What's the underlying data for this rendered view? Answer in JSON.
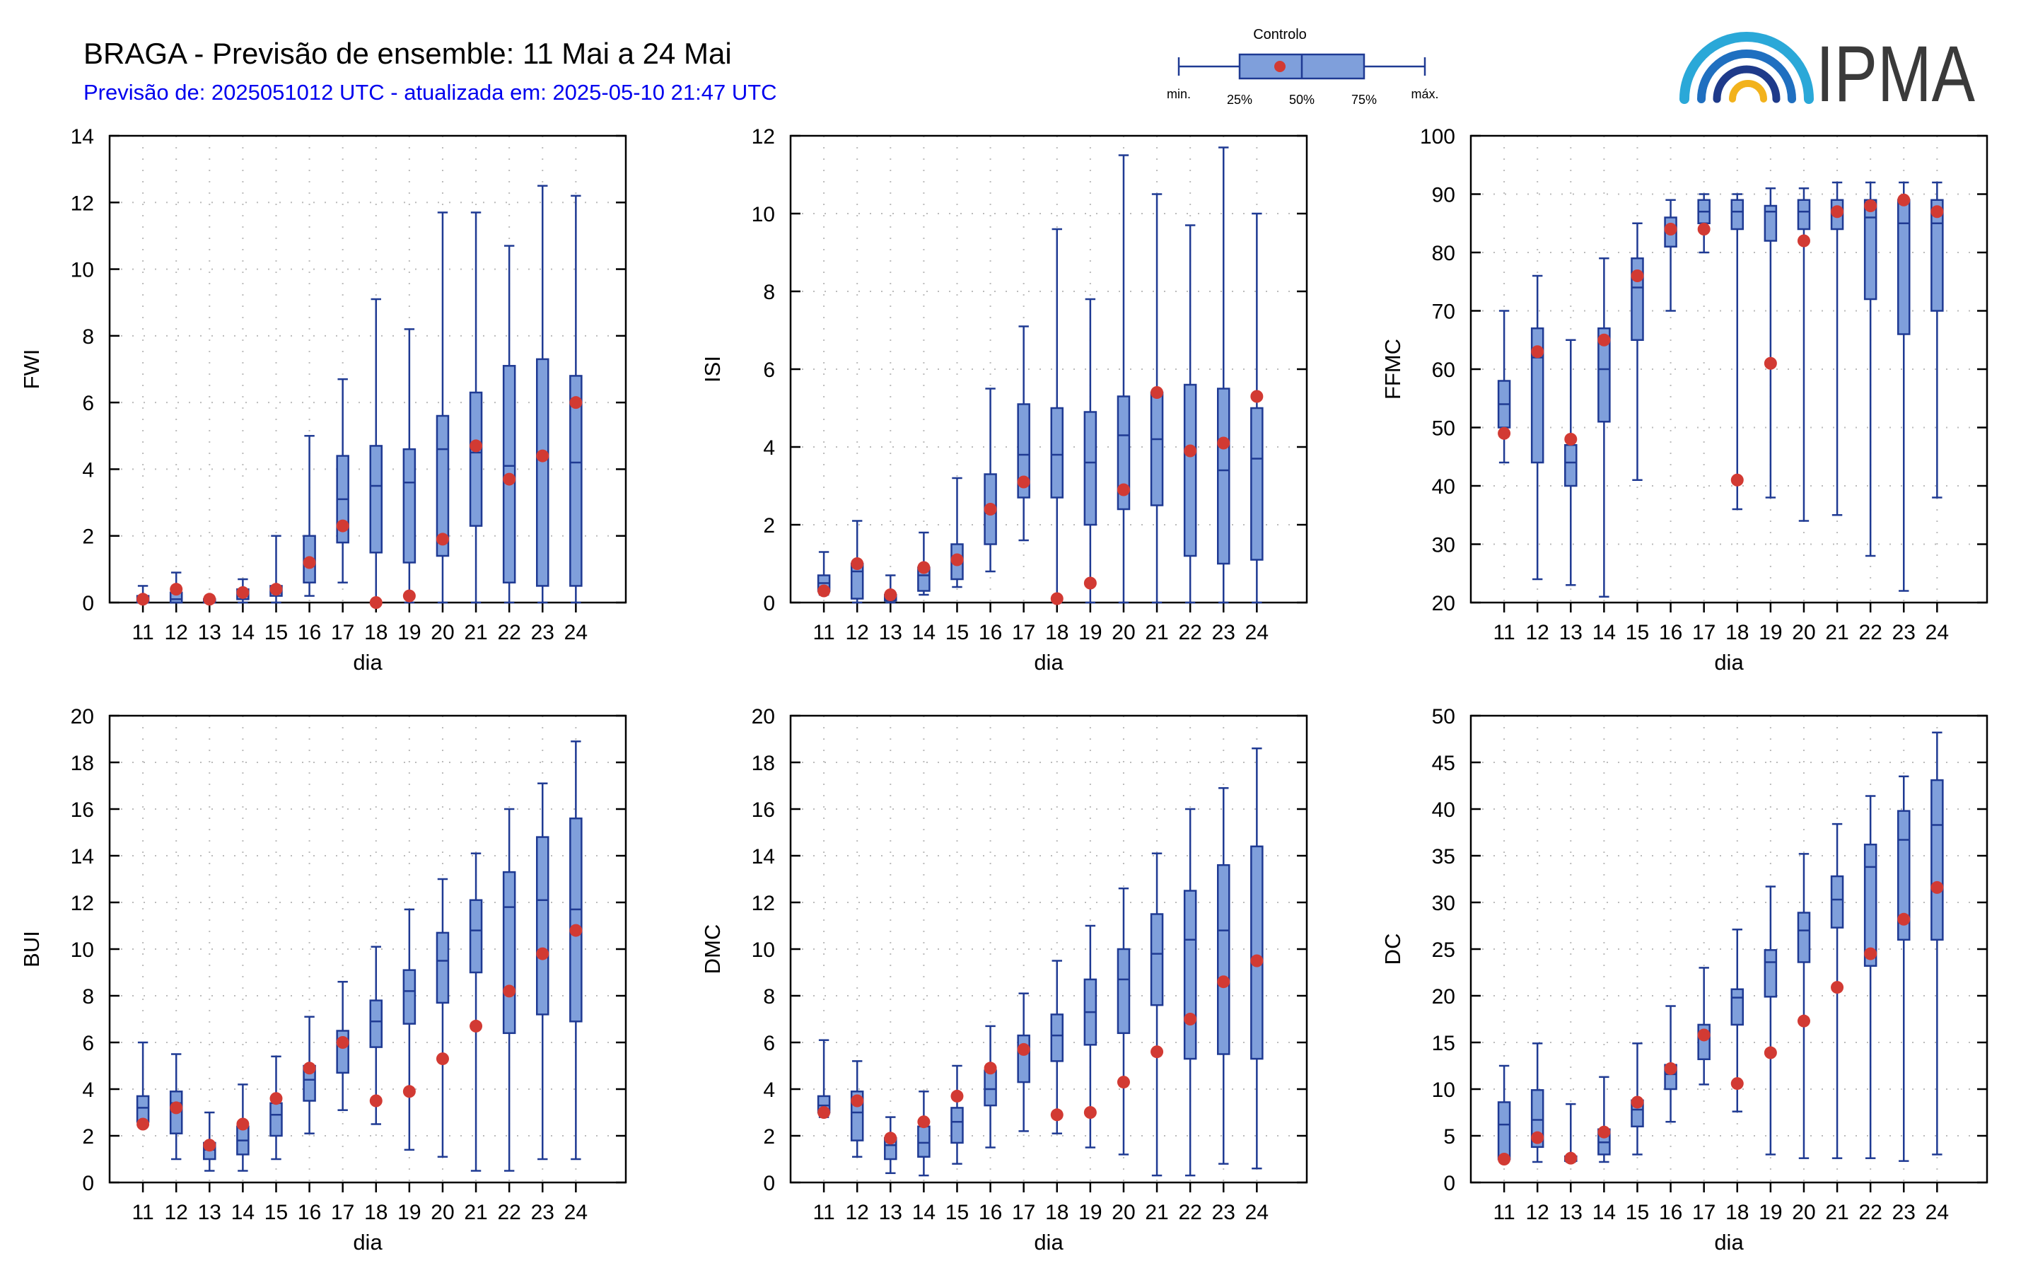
{
  "header": {
    "title": "BRAGA - Previsão de ensemble: 11 Mai a 24 Mai",
    "subtitle": "Previsão de: 2025051012 UTC - atualizada em: 2025-05-10 21:47 UTC",
    "logo_text": "IPMA"
  },
  "legend": {
    "control_label": "Controlo",
    "min_label": "min.",
    "q25_label": "25%",
    "median_label": "50%",
    "q75_label": "75%",
    "max_label": "máx."
  },
  "colors": {
    "box_fill": "#7f9fdb",
    "box_stroke": "#1f3a93",
    "control_dot": "#d23a33",
    "grid": "#bbbbbb"
  },
  "chart_data": [
    {
      "type": "boxplot",
      "ylabel": "FWI",
      "xlabel": "dia",
      "categories": [
        "11",
        "12",
        "13",
        "14",
        "15",
        "16",
        "17",
        "18",
        "19",
        "20",
        "21",
        "22",
        "23",
        "24"
      ],
      "ylim": [
        0,
        14
      ],
      "yticks": [
        0,
        2,
        4,
        6,
        8,
        10,
        12,
        14
      ],
      "min": [
        0,
        0,
        0,
        0,
        0,
        0.2,
        0.6,
        0,
        0,
        0,
        0,
        0,
        0,
        0
      ],
      "q1": [
        0,
        0,
        0,
        0.1,
        0.2,
        0.6,
        1.8,
        1.5,
        1.2,
        1.4,
        2.3,
        0.6,
        0.5,
        0.5
      ],
      "median": [
        0.1,
        0.1,
        0,
        0.2,
        0.3,
        1.1,
        3.1,
        3.5,
        3.6,
        4.6,
        4.5,
        4.1,
        4.3,
        4.2
      ],
      "q3": [
        0.2,
        0.3,
        0.1,
        0.4,
        0.5,
        2.0,
        4.4,
        4.7,
        4.6,
        5.6,
        6.3,
        7.1,
        7.3,
        6.8
      ],
      "max": [
        0.5,
        0.9,
        0.1,
        0.7,
        2.0,
        5.0,
        6.7,
        9.1,
        8.2,
        11.7,
        11.7,
        10.7,
        12.5,
        12.2
      ],
      "control": [
        0.1,
        0.4,
        0.1,
        0.3,
        0.4,
        1.2,
        2.3,
        0,
        0.2,
        1.9,
        4.7,
        3.7,
        4.4,
        6.0
      ]
    },
    {
      "type": "boxplot",
      "ylabel": "ISI",
      "xlabel": "dia",
      "categories": [
        "11",
        "12",
        "13",
        "14",
        "15",
        "16",
        "17",
        "18",
        "19",
        "20",
        "21",
        "22",
        "23",
        "24"
      ],
      "ylim": [
        0,
        12
      ],
      "yticks": [
        0,
        2,
        4,
        6,
        8,
        10,
        12
      ],
      "min": [
        0.2,
        0,
        0,
        0.2,
        0.4,
        0.8,
        1.6,
        0,
        0,
        0,
        0,
        0,
        0,
        0
      ],
      "q1": [
        0.3,
        0.1,
        0.05,
        0.3,
        0.6,
        1.5,
        2.7,
        2.7,
        2.0,
        2.4,
        2.5,
        1.2,
        1.0,
        1.1
      ],
      "median": [
        0.5,
        0.8,
        0.1,
        0.7,
        1.1,
        2.3,
        3.8,
        3.8,
        3.6,
        4.3,
        4.2,
        3.9,
        3.4,
        3.7
      ],
      "q3": [
        0.7,
        1.0,
        0.2,
        0.9,
        1.5,
        3.3,
        5.1,
        5.0,
        4.9,
        5.3,
        5.4,
        5.6,
        5.5,
        5.0
      ],
      "max": [
        1.3,
        2.1,
        0.7,
        1.8,
        3.2,
        5.5,
        7.1,
        9.6,
        7.8,
        11.5,
        10.5,
        9.7,
        11.7,
        10.0
      ],
      "control": [
        0.3,
        1.0,
        0.2,
        0.9,
        1.1,
        2.4,
        3.1,
        0.1,
        0.5,
        2.9,
        5.4,
        3.9,
        4.1,
        5.3
      ]
    },
    {
      "type": "boxplot",
      "ylabel": "FFMC",
      "xlabel": "dia",
      "categories": [
        "11",
        "12",
        "13",
        "14",
        "15",
        "16",
        "17",
        "18",
        "19",
        "20",
        "21",
        "22",
        "23",
        "24"
      ],
      "ylim": [
        20,
        100
      ],
      "yticks": [
        20,
        30,
        40,
        50,
        60,
        70,
        80,
        90,
        100
      ],
      "min": [
        44,
        24,
        23,
        21,
        41,
        70,
        80,
        36,
        38,
        34,
        35,
        28,
        22,
        38
      ],
      "q1": [
        50,
        44,
        40,
        51,
        65,
        81,
        85,
        84,
        82,
        84,
        84,
        72,
        66,
        70
      ],
      "median": [
        54,
        62,
        44,
        60,
        74,
        84,
        87,
        87,
        87,
        87,
        87,
        86,
        85,
        85
      ],
      "q3": [
        58,
        67,
        47,
        67,
        79,
        86,
        89,
        89,
        88,
        89,
        89,
        89,
        89,
        89
      ],
      "max": [
        70,
        76,
        65,
        79,
        85,
        89,
        90,
        90,
        91,
        91,
        92,
        92,
        92,
        92
      ],
      "control": [
        49,
        63,
        48,
        65,
        76,
        84,
        84,
        41,
        61,
        82,
        87,
        88,
        89,
        87
      ]
    },
    {
      "type": "boxplot",
      "ylabel": "BUI",
      "xlabel": "dia",
      "categories": [
        "11",
        "12",
        "13",
        "14",
        "15",
        "16",
        "17",
        "18",
        "19",
        "20",
        "21",
        "22",
        "23",
        "24"
      ],
      "ylim": [
        0,
        20
      ],
      "yticks": [
        0,
        2,
        4,
        6,
        8,
        10,
        12,
        14,
        16,
        18,
        20
      ],
      "min": [
        2.4,
        1.0,
        0.5,
        0.5,
        1.0,
        2.1,
        3.1,
        2.5,
        1.4,
        1.1,
        0.5,
        0.5,
        1.0,
        1.0
      ],
      "q1": [
        2.6,
        2.1,
        1.0,
        1.2,
        2.0,
        3.5,
        4.7,
        5.8,
        6.8,
        7.7,
        9.0,
        6.4,
        7.2,
        6.9
      ],
      "median": [
        3.2,
        3.4,
        1.4,
        1.8,
        2.9,
        4.4,
        6.1,
        6.9,
        8.2,
        9.5,
        10.8,
        11.8,
        12.1,
        11.7
      ],
      "q3": [
        3.7,
        3.9,
        1.7,
        2.4,
        3.4,
        5.0,
        6.5,
        7.8,
        9.1,
        10.7,
        12.1,
        13.3,
        14.8,
        15.6
      ],
      "max": [
        6.0,
        5.5,
        3.0,
        4.2,
        5.4,
        7.1,
        8.6,
        10.1,
        11.7,
        13.0,
        14.1,
        16.0,
        17.1,
        18.9
      ],
      "control": [
        2.5,
        3.2,
        1.6,
        2.5,
        3.6,
        4.9,
        6.0,
        3.5,
        3.9,
        5.3,
        6.7,
        8.2,
        9.8,
        10.8
      ]
    },
    {
      "type": "boxplot",
      "ylabel": "DMC",
      "xlabel": "dia",
      "categories": [
        "11",
        "12",
        "13",
        "14",
        "15",
        "16",
        "17",
        "18",
        "19",
        "20",
        "21",
        "22",
        "23",
        "24"
      ],
      "ylim": [
        0,
        20
      ],
      "yticks": [
        0,
        2,
        4,
        6,
        8,
        10,
        12,
        14,
        16,
        18,
        20
      ],
      "min": [
        2.8,
        1.1,
        0.4,
        0.3,
        0.8,
        1.5,
        2.2,
        2.1,
        1.5,
        1.2,
        0.3,
        0.3,
        0.8,
        0.6
      ],
      "q1": [
        3.0,
        1.8,
        1.0,
        1.1,
        1.7,
        3.3,
        4.3,
        5.2,
        5.9,
        6.4,
        7.6,
        5.3,
        5.5,
        5.3
      ],
      "median": [
        3.3,
        3.0,
        1.6,
        1.7,
        2.6,
        4.0,
        5.8,
        6.3,
        7.3,
        8.7,
        9.8,
        10.4,
        10.8,
        9.6
      ],
      "q3": [
        3.7,
        3.9,
        1.9,
        2.4,
        3.2,
        4.8,
        6.3,
        7.2,
        8.7,
        10.0,
        11.5,
        12.5,
        13.6,
        14.4
      ],
      "max": [
        6.1,
        5.2,
        2.8,
        3.9,
        5.0,
        6.7,
        8.1,
        9.5,
        11.0,
        12.6,
        14.1,
        16.0,
        16.9,
        18.6
      ],
      "control": [
        3.0,
        3.5,
        1.9,
        2.6,
        3.7,
        4.9,
        5.7,
        2.9,
        3.0,
        4.3,
        5.6,
        7.0,
        8.6,
        9.5
      ]
    },
    {
      "type": "boxplot",
      "ylabel": "DC",
      "xlabel": "dia",
      "categories": [
        "11",
        "12",
        "13",
        "14",
        "15",
        "16",
        "17",
        "18",
        "19",
        "20",
        "21",
        "22",
        "23",
        "24"
      ],
      "ylim": [
        0,
        50
      ],
      "yticks": [
        0,
        5,
        10,
        15,
        20,
        25,
        30,
        35,
        40,
        45,
        50
      ],
      "min": [
        2.2,
        2.2,
        2.2,
        2.2,
        3.0,
        6.5,
        10.5,
        7.6,
        3.0,
        2.6,
        2.6,
        2.6,
        2.3,
        3.0
      ],
      "q1": [
        2.5,
        3.8,
        2.3,
        3.0,
        6.0,
        10.0,
        13.2,
        16.9,
        19.9,
        23.6,
        27.3,
        23.2,
        26.0,
        26.0
      ],
      "median": [
        6.2,
        6.7,
        2.5,
        4.3,
        7.8,
        11.6,
        16.0,
        19.8,
        23.6,
        27.0,
        30.3,
        33.8,
        36.7,
        38.3
      ],
      "q3": [
        8.6,
        9.9,
        2.8,
        5.7,
        8.8,
        12.6,
        16.9,
        20.7,
        24.9,
        28.9,
        32.8,
        36.2,
        39.8,
        43.1
      ],
      "max": [
        12.5,
        14.9,
        8.4,
        11.3,
        14.9,
        18.9,
        23.0,
        27.1,
        31.7,
        35.2,
        38.4,
        41.4,
        43.5,
        48.2
      ],
      "control": [
        2.5,
        4.8,
        2.6,
        5.4,
        8.6,
        12.2,
        15.8,
        10.6,
        13.9,
        17.3,
        20.9,
        24.5,
        28.2,
        31.6
      ]
    }
  ]
}
